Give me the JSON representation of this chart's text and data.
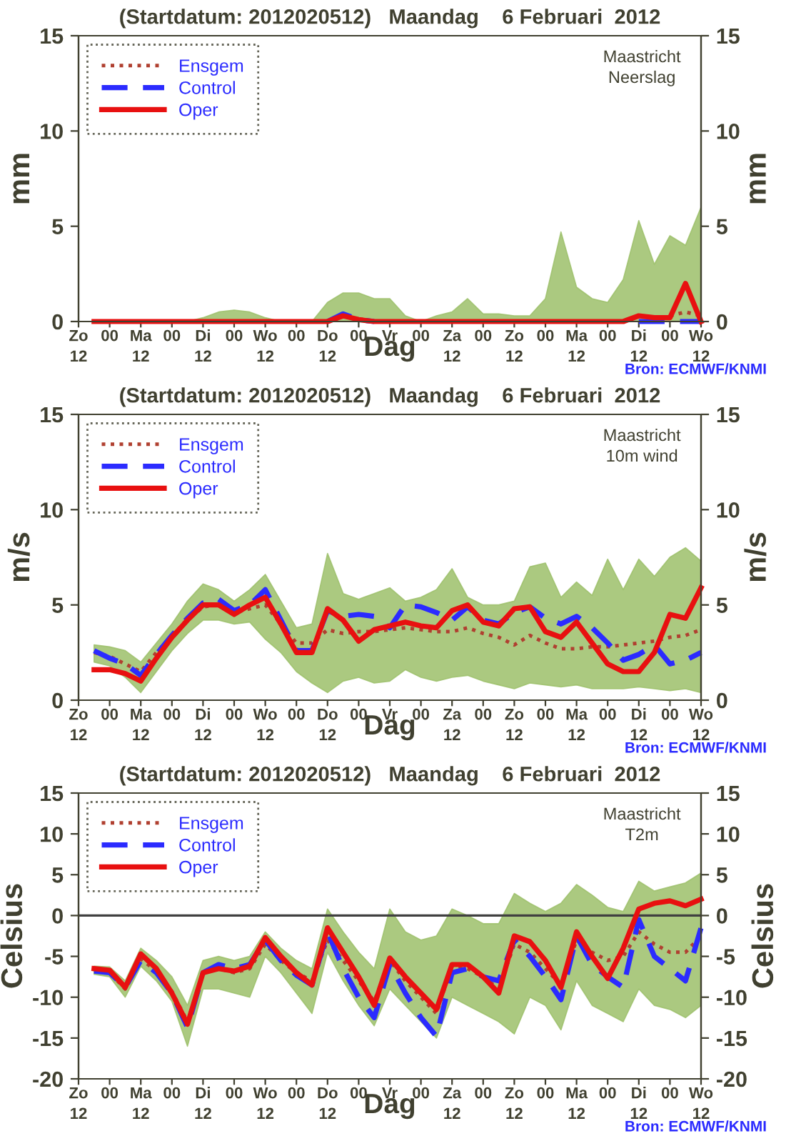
{
  "chart_data": [
    {
      "type": "line",
      "title": "(Startdatum: 2012020512)   Maandag    6 Februari  2012",
      "xlabel": "Dag",
      "ylabel": "mm",
      "y2label": "mm",
      "categories": [
        "Zo\n12",
        null,
        "00",
        null,
        "Ma\n12",
        null,
        "00",
        null,
        "Di\n12",
        null,
        "00",
        null,
        "Wo\n12",
        null,
        "00",
        null,
        "Do\n12",
        null,
        "00",
        null,
        "Vr",
        null,
        "00",
        null,
        "Za\n12",
        null,
        "00",
        null,
        "Zo\n12",
        null,
        "00",
        null,
        "Ma\n12",
        null,
        "00",
        null,
        "Di\n12",
        null,
        "00",
        null,
        "Wo\n12"
      ],
      "ylim": [
        0,
        15
      ],
      "yticks": [
        0,
        5,
        10,
        15
      ],
      "y2lim": [
        0,
        15
      ],
      "y2ticks": [
        0,
        5,
        10,
        15
      ],
      "legend": "top left",
      "annotations": [
        "Maastricht\nNeerslag",
        "Bron: ECMWF/KNMI"
      ],
      "series": [
        {
          "name": "Ensgem",
          "color": "#b04030",
          "line_style": "dotted",
          "values": [
            null,
            null,
            null,
            null,
            null,
            null,
            null,
            null,
            null,
            null,
            null,
            null,
            null,
            null,
            null,
            null,
            null,
            null,
            null,
            null,
            null,
            null,
            null,
            null,
            null,
            null,
            null,
            null,
            null,
            null,
            null,
            null,
            null,
            null,
            null,
            null,
            null,
            null,
            0.3,
            0.5,
            0.3
          ],
          "lower": [
            null,
            0,
            0,
            0,
            0,
            0,
            0,
            0,
            0,
            0,
            0,
            0,
            0,
            0,
            0,
            0,
            0,
            0,
            0,
            0,
            0,
            0,
            0,
            0,
            0,
            0,
            0,
            0,
            0,
            0,
            0,
            0,
            0,
            0,
            0,
            0,
            0,
            0,
            0,
            0,
            0
          ],
          "upper": [
            null,
            0,
            0,
            0,
            0,
            0,
            0,
            0,
            0.2,
            0.5,
            0.6,
            0.5,
            0.2,
            0,
            0,
            0,
            1.0,
            1.5,
            1.5,
            1.2,
            1.2,
            0.3,
            0,
            0.3,
            0.5,
            1.2,
            0.4,
            0.4,
            0.3,
            0.3,
            1.2,
            4.7,
            1.8,
            1.2,
            1.0,
            2.2,
            5.3,
            3.0,
            4.5,
            4.0,
            6.0
          ]
        },
        {
          "name": "Control",
          "color": "#2b2bff",
          "line_style": "dashed",
          "values": [
            null,
            null,
            null,
            null,
            null,
            null,
            null,
            null,
            null,
            null,
            null,
            null,
            null,
            null,
            null,
            null,
            0,
            0.4,
            0.1,
            0,
            null,
            null,
            null,
            null,
            null,
            null,
            null,
            null,
            null,
            null,
            null,
            null,
            null,
            null,
            null,
            null,
            0,
            0,
            0,
            0,
            0
          ]
        },
        {
          "name": "Oper",
          "color": "#e81010",
          "line_style": "solid",
          "values": [
            null,
            0,
            0,
            0,
            0,
            0,
            0,
            0,
            0,
            0,
            0,
            0,
            0,
            0,
            0,
            0,
            0,
            0.3,
            0.1,
            0,
            0,
            0,
            0,
            0,
            0,
            0,
            0,
            0,
            0,
            0,
            0,
            0,
            0,
            0,
            0,
            0,
            0.3,
            0.2,
            0.2,
            2.0,
            0
          ]
        }
      ]
    },
    {
      "type": "line",
      "title": "(Startdatum: 2012020512)   Maandag    6 Februari  2012",
      "xlabel": "Dag",
      "ylabel": "m/s",
      "y2label": "m/s",
      "categories": [
        "Zo\n12",
        null,
        "00",
        null,
        "Ma\n12",
        null,
        "00",
        null,
        "Di\n12",
        null,
        "00",
        null,
        "Wo\n12",
        null,
        "00",
        null,
        "Do\n12",
        null,
        "00",
        null,
        "Vr",
        null,
        "00",
        null,
        "Za\n12",
        null,
        "00",
        null,
        "Zo\n12",
        null,
        "00",
        null,
        "Ma\n12",
        null,
        "00",
        null,
        "Di\n12",
        null,
        "00",
        null,
        "Wo\n12"
      ],
      "ylim": [
        0,
        15
      ],
      "yticks": [
        0,
        5,
        10,
        15
      ],
      "y2lim": [
        0,
        15
      ],
      "y2ticks": [
        0,
        5,
        10,
        15
      ],
      "legend": "top left",
      "annotations": [
        "Maastricht\n10m wind",
        "Bron: ECMWF/KNMI"
      ],
      "series": [
        {
          "name": "Ensgem",
          "color": "#b04030",
          "line_style": "dotted",
          "values": [
            null,
            2.5,
            2.3,
            1.9,
            1.5,
            2.5,
            3.4,
            4.2,
            4.9,
            5.0,
            4.6,
            4.8,
            5.0,
            4.0,
            3.0,
            3.0,
            3.7,
            3.5,
            3.6,
            3.6,
            3.7,
            3.8,
            3.7,
            3.6,
            3.6,
            3.8,
            3.5,
            3.3,
            2.9,
            3.4,
            3.0,
            2.7,
            2.7,
            2.8,
            2.8,
            2.9,
            3.0,
            3.1,
            3.3,
            3.4,
            3.7
          ],
          "lower": [
            null,
            2.0,
            1.8,
            1.2,
            0.4,
            1.5,
            2.6,
            3.5,
            4.2,
            4.2,
            4.0,
            4.1,
            3.2,
            2.5,
            1.5,
            0.9,
            0.4,
            1.0,
            1.2,
            0.9,
            1.0,
            1.6,
            1.2,
            1.0,
            1.2,
            1.3,
            1.0,
            0.8,
            0.6,
            0.9,
            0.8,
            0.7,
            0.8,
            0.6,
            0.6,
            0.6,
            0.7,
            0.6,
            0.5,
            0.6,
            0.4
          ],
          "upper": [
            null,
            2.9,
            2.8,
            2.6,
            2.0,
            3.0,
            4.0,
            5.2,
            6.1,
            5.8,
            5.2,
            5.8,
            6.6,
            5.2,
            3.8,
            4.0,
            7.7,
            5.6,
            5.3,
            5.6,
            5.9,
            5.2,
            5.4,
            5.8,
            6.9,
            5.4,
            5.0,
            5.0,
            5.2,
            7.0,
            7.2,
            5.4,
            6.2,
            5.5,
            7.4,
            5.8,
            7.4,
            6.5,
            7.5,
            8.0,
            7.3
          ]
        },
        {
          "name": "Control",
          "color": "#2b2bff",
          "line_style": "dashed",
          "values": [
            null,
            2.6,
            2.2,
            1.9,
            1.3,
            2.4,
            3.4,
            4.3,
            5.1,
            5.3,
            4.7,
            5.0,
            5.8,
            4.2,
            2.6,
            2.6,
            4.7,
            4.4,
            4.5,
            4.4,
            3.8,
            5.0,
            4.9,
            4.6,
            4.2,
            4.9,
            4.2,
            4.0,
            4.6,
            4.9,
            4.3,
            4.0,
            4.4,
            3.8,
            3.0,
            2.1,
            2.4,
            2.9,
            1.9,
            2.1,
            2.5
          ]
        },
        {
          "name": "Oper",
          "color": "#e81010",
          "line_style": "solid",
          "values": [
            null,
            1.6,
            1.6,
            1.4,
            1.0,
            2.2,
            3.3,
            4.2,
            5.0,
            5.0,
            4.5,
            5.0,
            5.4,
            4.0,
            2.5,
            2.5,
            4.8,
            4.2,
            3.1,
            3.7,
            3.9,
            4.1,
            3.9,
            3.8,
            4.7,
            5.0,
            4.1,
            3.9,
            4.8,
            4.9,
            3.6,
            3.3,
            4.1,
            3.0,
            1.9,
            1.5,
            1.5,
            2.5,
            4.5,
            4.3,
            5.9
          ]
        }
      ]
    },
    {
      "type": "line",
      "title": "(Startdatum: 2012020512)   Maandag    6 Februari  2012",
      "xlabel": "Dag",
      "ylabel": "Celsius",
      "y2label": "Celsius",
      "categories": [
        "Zo\n12",
        null,
        "00",
        null,
        "Ma\n12",
        null,
        "00",
        null,
        "Di\n12",
        null,
        "00",
        null,
        "Wo\n12",
        null,
        "00",
        null,
        "Do\n12",
        null,
        "00",
        null,
        "Vr",
        null,
        "00",
        null,
        "Za\n12",
        null,
        "00",
        null,
        "Zo\n12",
        null,
        "00",
        null,
        "Ma\n12",
        null,
        "00",
        null,
        "Di\n12",
        null,
        "00",
        null,
        "Wo\n12"
      ],
      "ylim": [
        -20,
        15
      ],
      "yticks": [
        -20,
        -15,
        -10,
        -5,
        0,
        5,
        10,
        15
      ],
      "y2lim": [
        -20,
        15
      ],
      "y2ticks": [
        -20,
        -15,
        -10,
        -5,
        0,
        5,
        10,
        15
      ],
      "legend": "top left",
      "ref_lines": [
        {
          "axis": "y",
          "value": 0,
          "color": "#404040"
        }
      ],
      "annotations": [
        "Maastricht\nT2m",
        "Bron: ECMWF/KNMI"
      ],
      "series": [
        {
          "name": "Ensgem",
          "color": "#b04030",
          "line_style": "dotted",
          "values": [
            null,
            -6.7,
            -7.0,
            -9.0,
            -5.3,
            -6.8,
            -9.3,
            -13.0,
            -7.0,
            -6.5,
            -7.0,
            -6.5,
            -3.5,
            -5.5,
            -7.0,
            -8.0,
            -3.0,
            -5.5,
            -8.0,
            -10.5,
            -5.5,
            -8.0,
            -10.0,
            -12.0,
            -6.0,
            -6.5,
            -7.5,
            -9.0,
            -3.5,
            -4.5,
            -6.5,
            -8.5,
            -3.0,
            -4.5,
            -5.5,
            -5.0,
            -2.0,
            -3.5,
            -4.5,
            -4.5,
            -2.5
          ],
          "lower": [
            null,
            -7.2,
            -7.5,
            -10.0,
            -6.2,
            -8.0,
            -10.5,
            -16.0,
            -9.0,
            -9.0,
            -9.5,
            -10.0,
            -5.0,
            -7.0,
            -9.5,
            -12.0,
            -4.5,
            -8.0,
            -11.0,
            -13.5,
            -9.0,
            -11.0,
            -13.0,
            -15.0,
            -10.0,
            -11.0,
            -12.0,
            -13.0,
            -14.5,
            -10.0,
            -11.0,
            -14.0,
            -8.0,
            -11.0,
            -12.0,
            -13.0,
            -9.0,
            -11.0,
            -11.5,
            -12.5,
            -11.0
          ],
          "upper": [
            null,
            -6.2,
            -6.3,
            -8.0,
            -4.0,
            -5.5,
            -7.5,
            -11.0,
            -5.5,
            -5.0,
            -5.5,
            -5.0,
            -2.0,
            -4.0,
            -5.5,
            -6.5,
            0.8,
            -2.0,
            -4.5,
            -6.5,
            0.8,
            -2.0,
            -3.0,
            -2.5,
            0.8,
            0.0,
            -1.0,
            -1.0,
            2.7,
            1.5,
            0.5,
            1.5,
            3.8,
            2.5,
            1.0,
            0.5,
            4.2,
            3.0,
            3.5,
            4.0,
            5.2
          ]
        },
        {
          "name": "Control",
          "color": "#2b2bff",
          "line_style": "dashed",
          "values": [
            null,
            -6.8,
            -7.0,
            -8.8,
            -5.5,
            -7.0,
            -9.5,
            -13.7,
            -7.0,
            -6.0,
            -6.5,
            -6.0,
            -3.0,
            -5.5,
            -7.3,
            -8.5,
            -2.0,
            -6.5,
            -10.0,
            -12.5,
            -6.0,
            -9.5,
            -12.5,
            -14.8,
            -7.0,
            -6.5,
            -7.5,
            -8.0,
            -3.0,
            -5.0,
            -7.5,
            -10.3,
            -2.5,
            -6.0,
            -7.5,
            -8.8,
            -0.5,
            -5.0,
            -6.5,
            -8.0,
            -1.5
          ]
        },
        {
          "name": "Oper",
          "color": "#e81010",
          "line_style": "solid",
          "values": [
            null,
            -6.5,
            -6.7,
            -8.8,
            -4.7,
            -6.5,
            -9.5,
            -13.3,
            -7.0,
            -6.5,
            -6.8,
            -6.2,
            -2.7,
            -5.0,
            -7.0,
            -8.5,
            -1.5,
            -4.5,
            -7.5,
            -11.0,
            -5.2,
            -7.5,
            -9.5,
            -11.5,
            -6.0,
            -6.0,
            -7.5,
            -9.5,
            -2.5,
            -3.2,
            -5.5,
            -8.8,
            -2.0,
            -5.0,
            -7.7,
            -4.0,
            0.8,
            1.5,
            1.8,
            1.2,
            2.0
          ]
        }
      ]
    }
  ]
}
